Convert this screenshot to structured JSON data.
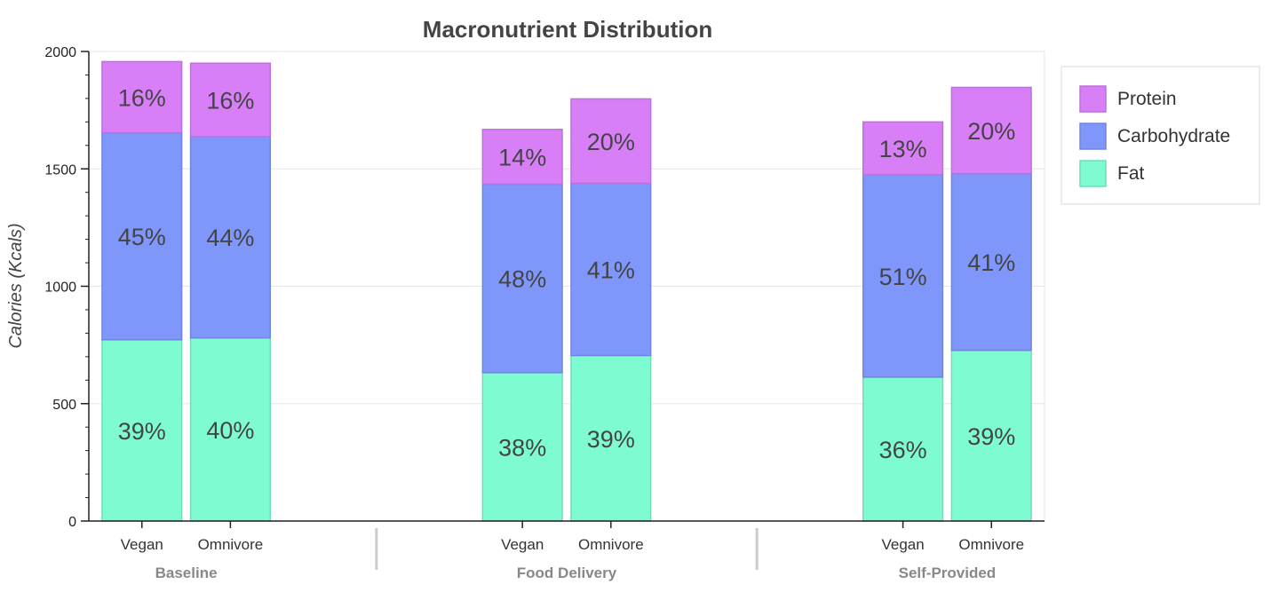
{
  "chart_data": {
    "type": "bar",
    "stacked": true,
    "title": "Macronutrient Distribution",
    "xlabel": "",
    "ylabel": "Calories (Kcals)",
    "ylim": [
      0,
      2000
    ],
    "yticks": [
      0,
      500,
      1000,
      1500,
      2000
    ],
    "grid": true,
    "legend_position": "right",
    "groups": [
      {
        "name": "Baseline",
        "categories": [
          "Vegan",
          "Omnivore"
        ]
      },
      {
        "name": "Food Delivery",
        "categories": [
          "Vegan",
          "Omnivore"
        ]
      },
      {
        "name": "Self-Provided",
        "categories": [
          "Vegan",
          "Omnivore"
        ]
      }
    ],
    "series": [
      {
        "name": "Fat",
        "color": "#7ffbd1",
        "values": [
          772,
          780,
          632,
          705,
          613,
          727
        ],
        "labels": [
          "39%",
          "40%",
          "38%",
          "39%",
          "36%",
          "39%"
        ]
      },
      {
        "name": "Carbohydrate",
        "color": "#7f97fb",
        "values": [
          882,
          858,
          803,
          733,
          862,
          753
        ],
        "labels": [
          "45%",
          "44%",
          "48%",
          "41%",
          "51%",
          "41%"
        ]
      },
      {
        "name": "Protein",
        "color": "#d87ff8",
        "values": [
          303,
          312,
          233,
          360,
          225,
          367
        ],
        "labels": [
          "16%",
          "16%",
          "14%",
          "20%",
          "13%",
          "20%"
        ]
      }
    ],
    "legend_order": [
      "Protein",
      "Carbohydrate",
      "Fat"
    ]
  }
}
